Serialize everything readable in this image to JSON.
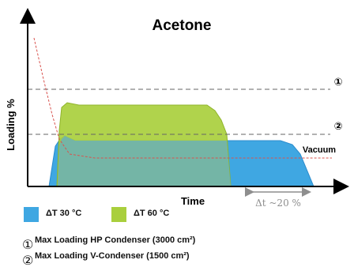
{
  "chart_data": {
    "type": "area",
    "title": "Acetone",
    "xlabel": "Time",
    "ylabel": "Loading %",
    "x": [
      0,
      1,
      2,
      3,
      4,
      5,
      6,
      7,
      8,
      9,
      10
    ],
    "series": [
      {
        "name": "ΔT 30 °C",
        "color": "#3fa7e2",
        "values": [
          0,
          64,
          58,
          58,
          58,
          58,
          58,
          58,
          58,
          50,
          0
        ]
      },
      {
        "name": "ΔT 60 °C",
        "color": "#a9cf3d",
        "values": [
          0,
          90,
          88,
          88,
          88,
          88,
          88,
          80,
          0,
          0,
          0
        ]
      }
    ],
    "reference_lines": [
      {
        "label": "①",
        "value": 100
      },
      {
        "label": "②",
        "value": 65
      }
    ],
    "vacuum_label": "Vacuum",
    "delta_label": "Δt ~20 %",
    "grid": false,
    "legend": "bottom-left"
  },
  "legend": [
    {
      "label": "ΔT 30 °C",
      "color": "#3fa7e2"
    },
    {
      "label": "ΔT 60 °C",
      "color": "#a9cf3d"
    }
  ],
  "notes": [
    {
      "marker": "①",
      "text": "Max Loading HP Condenser (3000 cm²)"
    },
    {
      "marker": "②",
      "text": "Max Loading V-Condenser (1500 cm²)"
    }
  ]
}
